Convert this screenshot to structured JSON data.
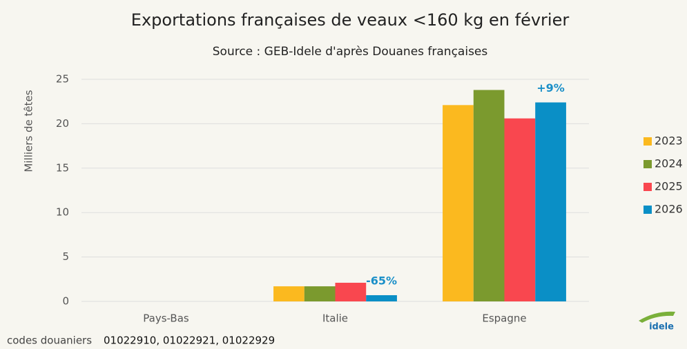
{
  "chart_data": {
    "type": "bar",
    "title": "Exportations françaises de veaux <160 kg en février",
    "subtitle": "Source : GEB-Idele d'après Douanes françaises",
    "y_label": "Milliers de têtes",
    "categories": [
      "Pays-Bas",
      "Italie",
      "Espagne"
    ],
    "series": [
      {
        "name": "2023",
        "color": "#fbb91f",
        "values": [
          0,
          1.7,
          22.1
        ]
      },
      {
        "name": "2024",
        "color": "#7b9a2e",
        "values": [
          0,
          1.7,
          23.8
        ]
      },
      {
        "name": "2025",
        "color": "#f9474f",
        "values": [
          0,
          2.1,
          20.6
        ]
      },
      {
        "name": "2026",
        "color": "#0a8fc6",
        "values": [
          0,
          0.7,
          22.4
        ]
      }
    ],
    "annotations": [
      {
        "text": "-65%",
        "category": "Italie",
        "series": "2026"
      },
      {
        "text": "+9%",
        "category": "Espagne",
        "series": "2026"
      }
    ],
    "ylim": [
      0,
      25
    ],
    "yticks": [
      0,
      5,
      10,
      15,
      20,
      25
    ],
    "grid": true,
    "legend": "right",
    "footnote": {
      "prefix": "codes douaniers",
      "codes": "01022910, 01022921, 01022929"
    },
    "logo": "idele"
  }
}
